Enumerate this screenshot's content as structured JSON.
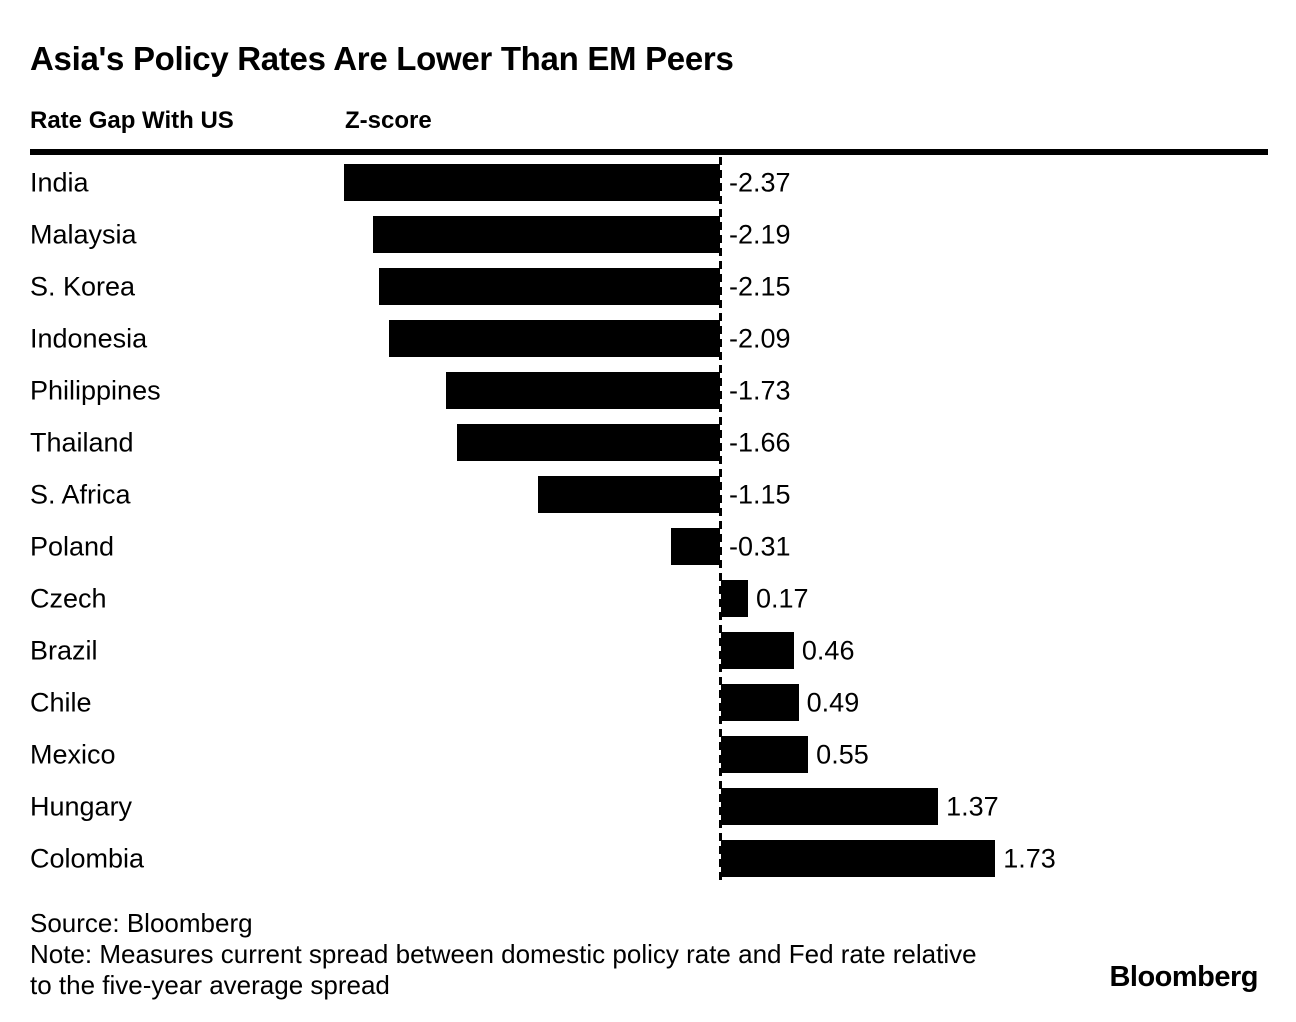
{
  "header": {
    "title": "Asia's Policy Rates Are Lower Than EM Peers",
    "legend_label": "Rate Gap With US",
    "unit_label": "Z-score"
  },
  "chart_data": {
    "type": "bar",
    "orientation": "horizontal",
    "title": "Asia's Policy Rates Are Lower Than EM Peers",
    "xlabel": "Z-score",
    "ylabel": "",
    "xlim": [
      -2.6,
      2.0
    ],
    "grid": false,
    "zero_axis_style": "dashed",
    "bar_color": "#000000",
    "categories": [
      "India",
      "Malaysia",
      "S. Korea",
      "Indonesia",
      "Philippines",
      "Thailand",
      "S. Africa",
      "Poland",
      "Czech",
      "Brazil",
      "Chile",
      "Mexico",
      "Hungary",
      "Colombia"
    ],
    "values": [
      -2.37,
      -2.19,
      -2.15,
      -2.09,
      -1.73,
      -1.66,
      -1.15,
      -0.31,
      0.17,
      0.46,
      0.49,
      0.55,
      1.37,
      1.73
    ],
    "value_labels": [
      "-2.37",
      "-2.19",
      "-2.15",
      "-2.09",
      "-1.73",
      "-1.66",
      "-1.15",
      "-0.31",
      "0.17",
      "0.46",
      "0.49",
      "0.55",
      "1.37",
      "1.73"
    ]
  },
  "footer": {
    "source": "Source: Bloomberg",
    "note_line1": "Note: Measures current spread between domestic policy rate and Fed rate relative",
    "note_line2": "to the five-year average spread",
    "logo": "Bloomberg"
  },
  "colors": {
    "background": "#ffffff",
    "bar": "#000000",
    "text": "#000000"
  }
}
